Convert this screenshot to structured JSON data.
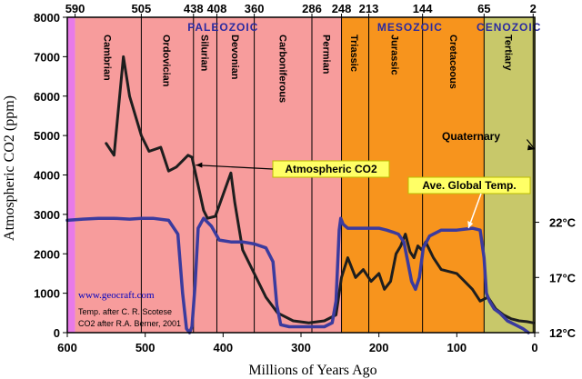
{
  "chart_data": {
    "type": "line",
    "title": "",
    "xlabel": "Millions of Years Ago",
    "ylabel": "Atmospheric CO2 (ppm)",
    "xlim": [
      600,
      0
    ],
    "ylim": [
      0,
      8000
    ],
    "x_ticks": [
      600,
      500,
      400,
      300,
      200,
      100,
      0
    ],
    "y_ticks": [
      0,
      1000,
      2000,
      3000,
      4000,
      5000,
      6000,
      7000,
      8000
    ],
    "top_ticks": [
      {
        "label": "590",
        "x": 590
      },
      {
        "label": "505",
        "x": 505
      },
      {
        "label": "438",
        "x": 438
      },
      {
        "label": "408",
        "x": 408
      },
      {
        "label": "360",
        "x": 360
      },
      {
        "label": "286",
        "x": 286
      },
      {
        "label": "248",
        "x": 248
      },
      {
        "label": "213",
        "x": 213
      },
      {
        "label": "144",
        "x": 144
      },
      {
        "label": "65",
        "x": 65
      },
      {
        "label": "2",
        "x": 2
      }
    ],
    "eras": [
      {
        "name": "PALEOZOIC",
        "start": 590,
        "end": 248,
        "color": "#f79c9c",
        "label_x": 400
      },
      {
        "name": "MESOZOIC",
        "start": 248,
        "end": 65,
        "color": "#f7941d",
        "label_x": 160
      },
      {
        "name": "CENOZOIC",
        "start": 65,
        "end": 2,
        "color": "#c8c86a",
        "label_x": 33
      }
    ],
    "pre_band": {
      "start": 600,
      "end": 590,
      "color": "#e87ae8"
    },
    "quaternary_band": {
      "start": 2,
      "end": 0,
      "color": "#c8c86a"
    },
    "periods": [
      {
        "name": "Cambrian",
        "x": 548
      },
      {
        "name": "Ordovician",
        "x": 472
      },
      {
        "name": "Silurian",
        "x": 423
      },
      {
        "name": "Devonian",
        "x": 384
      },
      {
        "name": "Carboniferous",
        "x": 323
      },
      {
        "name": "Permian",
        "x": 267
      },
      {
        "name": "Triassic",
        "x": 231
      },
      {
        "name": "Jurassic",
        "x": 179
      },
      {
        "name": "Cretaceous",
        "x": 104
      },
      {
        "name": "Tertiary",
        "x": 33
      }
    ],
    "series": [
      {
        "name": "Atmospheric CO2",
        "color": "#1e1e1e",
        "points": [
          [
            550,
            4800
          ],
          [
            540,
            4500
          ],
          [
            528,
            7000
          ],
          [
            520,
            6000
          ],
          [
            505,
            5000
          ],
          [
            495,
            4600
          ],
          [
            480,
            4700
          ],
          [
            470,
            4100
          ],
          [
            460,
            4200
          ],
          [
            445,
            4500
          ],
          [
            440,
            4450
          ],
          [
            425,
            3100
          ],
          [
            420,
            2900
          ],
          [
            410,
            2950
          ],
          [
            400,
            3500
          ],
          [
            390,
            4050
          ],
          [
            385,
            3300
          ],
          [
            375,
            2100
          ],
          [
            360,
            1500
          ],
          [
            345,
            900
          ],
          [
            330,
            500
          ],
          [
            310,
            300
          ],
          [
            290,
            250
          ],
          [
            270,
            300
          ],
          [
            255,
            450
          ],
          [
            248,
            1400
          ],
          [
            240,
            1900
          ],
          [
            230,
            1400
          ],
          [
            220,
            1600
          ],
          [
            210,
            1300
          ],
          [
            200,
            1500
          ],
          [
            193,
            1100
          ],
          [
            185,
            1300
          ],
          [
            178,
            2000
          ],
          [
            172,
            2200
          ],
          [
            166,
            2500
          ],
          [
            160,
            2050
          ],
          [
            155,
            1900
          ],
          [
            150,
            2200
          ],
          [
            145,
            2100
          ],
          [
            140,
            2300
          ],
          [
            130,
            1900
          ],
          [
            120,
            1600
          ],
          [
            100,
            1500
          ],
          [
            90,
            1300
          ],
          [
            80,
            1100
          ],
          [
            70,
            800
          ],
          [
            60,
            900
          ],
          [
            50,
            600
          ],
          [
            40,
            450
          ],
          [
            30,
            350
          ],
          [
            20,
            300
          ],
          [
            10,
            280
          ],
          [
            2,
            250
          ]
        ]
      },
      {
        "name": "Ave. Global Temp.",
        "color": "#3b3b9e",
        "points": [
          [
            600,
            2850
          ],
          [
            580,
            2880
          ],
          [
            560,
            2900
          ],
          [
            540,
            2900
          ],
          [
            520,
            2880
          ],
          [
            505,
            2900
          ],
          [
            490,
            2900
          ],
          [
            470,
            2850
          ],
          [
            458,
            2500
          ],
          [
            452,
            1000
          ],
          [
            447,
            100
          ],
          [
            443,
            0
          ],
          [
            440,
            150
          ],
          [
            436,
            1200
          ],
          [
            432,
            2650
          ],
          [
            425,
            2900
          ],
          [
            415,
            2700
          ],
          [
            405,
            2350
          ],
          [
            390,
            2300
          ],
          [
            375,
            2300
          ],
          [
            360,
            2250
          ],
          [
            345,
            2150
          ],
          [
            336,
            1800
          ],
          [
            331,
            700
          ],
          [
            326,
            200
          ],
          [
            315,
            150
          ],
          [
            300,
            150
          ],
          [
            285,
            150
          ],
          [
            270,
            150
          ],
          [
            260,
            250
          ],
          [
            255,
            800
          ],
          [
            251,
            2600
          ],
          [
            249,
            2900
          ],
          [
            246,
            2750
          ],
          [
            240,
            2650
          ],
          [
            220,
            2650
          ],
          [
            200,
            2650
          ],
          [
            190,
            2600
          ],
          [
            182,
            2550
          ],
          [
            175,
            2500
          ],
          [
            168,
            2300
          ],
          [
            163,
            1800
          ],
          [
            158,
            1300
          ],
          [
            153,
            1100
          ],
          [
            148,
            1400
          ],
          [
            143,
            2150
          ],
          [
            135,
            2450
          ],
          [
            120,
            2600
          ],
          [
            100,
            2600
          ],
          [
            80,
            2650
          ],
          [
            70,
            2600
          ],
          [
            65,
            1900
          ],
          [
            62,
            1000
          ],
          [
            58,
            800
          ],
          [
            52,
            600
          ],
          [
            45,
            500
          ],
          [
            35,
            300
          ],
          [
            25,
            200
          ],
          [
            15,
            100
          ],
          [
            8,
            0
          ]
        ]
      }
    ],
    "callouts": [
      {
        "label": "Atmospheric CO2",
        "box_x": 300,
        "box_y": 177
      },
      {
        "label": "Ave. Global Temp.",
        "box_x": 449,
        "box_y": 195
      },
      {
        "label": "Quaternary",
        "box_x": 486,
        "box_y": 143
      }
    ],
    "temp_axis": [
      {
        "label": "22°C",
        "co2": 2800
      },
      {
        "label": "17°C",
        "co2": 1400
      },
      {
        "label": "12°C",
        "co2": 0
      }
    ]
  },
  "credits": {
    "site": "www.geocraft.com",
    "temp": "Temp. after C. R. Scotese",
    "co2": "CO2 after R.A. Berner, 2001"
  }
}
